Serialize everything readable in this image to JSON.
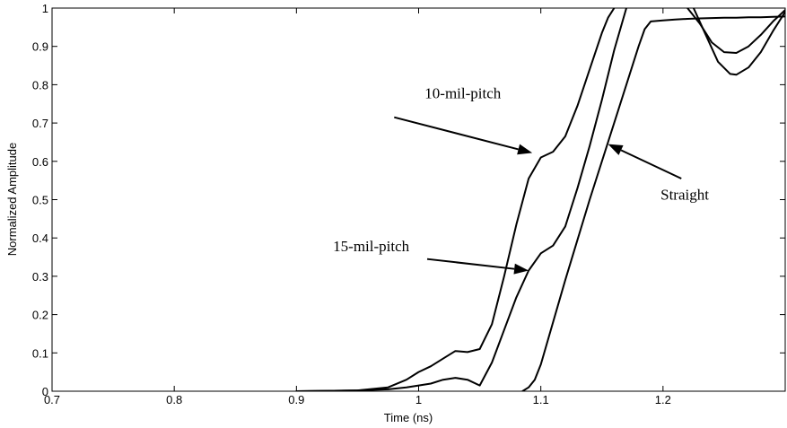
{
  "chart_data": {
    "type": "line",
    "title": "",
    "xlabel": "Time (ns)",
    "ylabel": "Normalized Amplitude",
    "xlim": [
      0.7,
      1.3
    ],
    "ylim": [
      0,
      1
    ],
    "xticks": [
      0.7,
      0.8,
      0.9,
      1.0,
      1.1,
      1.2
    ],
    "xtick_labels": [
      "0.7",
      "0.8",
      "0.9",
      "1",
      "1.1",
      "1.2"
    ],
    "yticks": [
      0,
      0.1,
      0.2,
      0.3,
      0.4,
      0.5,
      0.6,
      0.7,
      0.8,
      0.9,
      1.0
    ],
    "ytick_labels": [
      "0",
      "0.1",
      "0.2",
      "0.3",
      "0.4",
      "0.5",
      "0.6",
      "0.7",
      "0.8",
      "0.9",
      "1"
    ],
    "grid": false,
    "legend": "none",
    "line_color": "#000000",
    "series": [
      {
        "key": "10-mil-pitch",
        "x": [
          0.9,
          0.95,
          0.975,
          0.99,
          1.0,
          1.01,
          1.02,
          1.03,
          1.04,
          1.05,
          1.06,
          1.07,
          1.08,
          1.09,
          1.1,
          1.11,
          1.12,
          1.13,
          1.14,
          1.15,
          1.155,
          1.16
        ],
        "y": [
          0,
          0.002,
          0.01,
          0.03,
          0.05,
          0.065,
          0.085,
          0.105,
          0.102,
          0.11,
          0.175,
          0.3,
          0.435,
          0.555,
          0.61,
          0.625,
          0.665,
          0.745,
          0.84,
          0.935,
          0.975,
          1.0
        ]
      },
      {
        "key": "15-mil-pitch",
        "x": [
          0.9,
          0.95,
          0.975,
          0.99,
          1.0,
          1.01,
          1.02,
          1.03,
          1.04,
          1.05,
          1.06,
          1.07,
          1.08,
          1.09,
          1.1,
          1.11,
          1.12,
          1.13,
          1.14,
          1.15,
          1.16,
          1.17
        ],
        "y": [
          0,
          0.002,
          0.005,
          0.01,
          0.015,
          0.02,
          0.03,
          0.035,
          0.03,
          0.015,
          0.075,
          0.16,
          0.245,
          0.315,
          0.36,
          0.38,
          0.43,
          0.53,
          0.64,
          0.76,
          0.89,
          1.0
        ]
      },
      {
        "key": "straight",
        "x": [
          1.085,
          1.09,
          1.095,
          1.1,
          1.12,
          1.14,
          1.16,
          1.18,
          1.185,
          1.19,
          1.2,
          1.21,
          1.22,
          1.23,
          1.24,
          1.25,
          1.26,
          1.27,
          1.28,
          1.29,
          1.3
        ],
        "y": [
          0,
          0.01,
          0.03,
          0.07,
          0.29,
          0.5,
          0.7,
          0.9,
          0.945,
          0.965,
          0.968,
          0.97,
          0.972,
          0.973,
          0.974,
          0.975,
          0.975,
          0.976,
          0.976,
          0.977,
          0.978
        ]
      },
      {
        "key": "dip-upper",
        "x": [
          1.22,
          1.23,
          1.24,
          1.25,
          1.26,
          1.27,
          1.28,
          1.29,
          1.3
        ],
        "y": [
          1.0,
          0.96,
          0.91,
          0.885,
          0.883,
          0.9,
          0.93,
          0.965,
          0.995
        ]
      },
      {
        "key": "dip-lower",
        "x": [
          1.225,
          1.235,
          1.245,
          1.255,
          1.26,
          1.27,
          1.28,
          1.29,
          1.3
        ],
        "y": [
          1.0,
          0.93,
          0.86,
          0.828,
          0.826,
          0.845,
          0.885,
          0.94,
          0.99
        ]
      }
    ],
    "annotations": [
      {
        "text": "10-mil-pitch",
        "tx": 1.005,
        "ty": 0.765,
        "ax": 0.98,
        "ay": 0.715,
        "hx": 1.093,
        "hy": 0.622
      },
      {
        "text": "15-mil-pitch",
        "tx": 0.93,
        "ty": 0.365,
        "ax": 1.007,
        "ay": 0.345,
        "hx": 1.09,
        "hy": 0.315
      },
      {
        "text": "Straight",
        "tx": 1.198,
        "ty": 0.5,
        "ax": 1.215,
        "ay": 0.555,
        "hx": 1.155,
        "hy": 0.645
      }
    ]
  }
}
